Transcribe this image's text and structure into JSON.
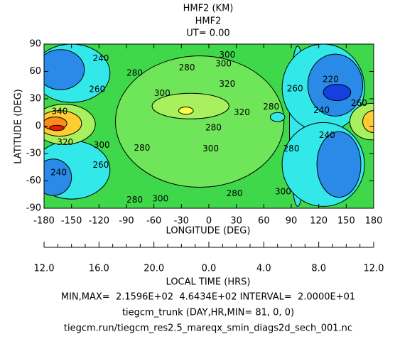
{
  "chart_data": {
    "type": "contour",
    "title": "HMF2 (KM)",
    "subtitle": "HMF2",
    "ut": "UT= 0.00",
    "xlabel": "LONGITUDE (DEG)",
    "ylabel": "LATITUDE (DEG)",
    "xlim": [
      -180,
      180
    ],
    "xticks": [
      -180,
      -150,
      -120,
      -90,
      -60,
      -30,
      0,
      30,
      60,
      90,
      120,
      150,
      180
    ],
    "ylim": [
      -90,
      90
    ],
    "yticks": [
      -90,
      -60,
      -30,
      0,
      30,
      60,
      90
    ],
    "background_color": "#3fd84a",
    "regions": [
      {
        "level": 300,
        "x": -10,
        "y": 5,
        "rx": 92,
        "ry": 72,
        "color": "#6fe65a"
      },
      {
        "level": 320,
        "x": -20,
        "y": 22,
        "rx": 42,
        "ry": 14,
        "color": "#a8f05e"
      },
      {
        "level": 340,
        "x": -25,
        "y": 17,
        "rx": 8,
        "ry": 4,
        "color": "#ffff44"
      },
      {
        "level": 260,
        "x": -150,
        "y": 58,
        "rx": 42,
        "ry": 32,
        "color": "#33e8e8"
      },
      {
        "level": 260,
        "x": -150,
        "y": -48,
        "rx": 42,
        "ry": 32,
        "color": "#33e8e8"
      },
      {
        "level": 260,
        "x": 97,
        "y": 0,
        "rx": 9,
        "ry": 88,
        "color": "#33e8e8"
      },
      {
        "level": 260,
        "x": 125,
        "y": 42,
        "rx": 45,
        "ry": 48,
        "color": "#33e8e8"
      },
      {
        "level": 260,
        "x": 125,
        "y": -42,
        "rx": 45,
        "ry": 46,
        "color": "#33e8e8"
      },
      {
        "level": 240,
        "x": -162,
        "y": 62,
        "rx": 26,
        "ry": 22,
        "color": "#2a8ae8"
      },
      {
        "level": 240,
        "x": -170,
        "y": -56,
        "rx": 20,
        "ry": 20,
        "color": "#2a8ae8"
      },
      {
        "level": 240,
        "x": 138,
        "y": 45,
        "rx": 30,
        "ry": 34,
        "color": "#2a8ae8"
      },
      {
        "level": 240,
        "x": 142,
        "y": -42,
        "rx": 24,
        "ry": 36,
        "color": "#2a8ae8"
      },
      {
        "level": 220,
        "x": 140,
        "y": 37,
        "rx": 15,
        "ry": 9,
        "color": "#1540e0"
      },
      {
        "level": 260,
        "x": 75,
        "y": 10,
        "rx": 8,
        "ry": 5,
        "color": "#33e8e8"
      },
      {
        "level": 320,
        "x": -158,
        "y": 2,
        "rx": 34,
        "ry": 22,
        "color": "#a8f05e"
      },
      {
        "level": 340,
        "x": -163,
        "y": 3,
        "rx": 24,
        "ry": 14,
        "color": "#ffcc33"
      },
      {
        "level": 360,
        "x": -168,
        "y": 3,
        "rx": 13,
        "ry": 7,
        "color": "#ff8c1a"
      },
      {
        "level": 380,
        "x": -166,
        "y": -2,
        "rx": 8,
        "ry": 3,
        "color": "#e82000"
      },
      {
        "level": 320,
        "x": 178,
        "y": 5,
        "rx": 24,
        "ry": 20,
        "color": "#a8f05e"
      },
      {
        "level": 340,
        "x": 180,
        "y": 5,
        "rx": 12,
        "ry": 12,
        "color": "#ffcc33"
      }
    ],
    "contour_labels": [
      {
        "value": 240,
        "x": -118,
        "y": 74
      },
      {
        "value": 260,
        "x": -122,
        "y": 40
      },
      {
        "value": 340,
        "x": -163,
        "y": 16
      },
      {
        "value": 320,
        "x": -157,
        "y": -18
      },
      {
        "value": 300,
        "x": -117,
        "y": -21
      },
      {
        "value": 260,
        "x": -118,
        "y": -43
      },
      {
        "value": 240,
        "x": -164,
        "y": -51
      },
      {
        "value": 280,
        "x": -73,
        "y": -24
      },
      {
        "value": 280,
        "x": -81,
        "y": -81
      },
      {
        "value": 300,
        "x": -53,
        "y": -80
      },
      {
        "value": 300,
        "x": -51,
        "y": 36
      },
      {
        "value": 280,
        "x": -81,
        "y": 58
      },
      {
        "value": 280,
        "x": -24,
        "y": 64
      },
      {
        "value": 300,
        "x": 16,
        "y": 68
      },
      {
        "value": 300,
        "x": 20,
        "y": 78
      },
      {
        "value": 320,
        "x": 20,
        "y": 46
      },
      {
        "value": 320,
        "x": 36,
        "y": 15
      },
      {
        "value": 280,
        "x": 5,
        "y": -2
      },
      {
        "value": 300,
        "x": 2,
        "y": -25
      },
      {
        "value": 280,
        "x": 28,
        "y": -74
      },
      {
        "value": 300,
        "x": 81,
        "y": -72
      },
      {
        "value": 280,
        "x": 68,
        "y": 21
      },
      {
        "value": 260,
        "x": 94,
        "y": 41
      },
      {
        "value": 280,
        "x": 90,
        "y": -25
      },
      {
        "value": 220,
        "x": 133,
        "y": 51
      },
      {
        "value": 240,
        "x": 123,
        "y": 17
      },
      {
        "value": 240,
        "x": 129,
        "y": -10
      },
      {
        "value": 260,
        "x": 164,
        "y": 25
      }
    ],
    "local_time": {
      "label": "LOCAL TIME (HRS)",
      "ticks": [
        "12.0",
        "16.0",
        "20.0",
        "0.0",
        "4.0",
        "8.0",
        "12.0"
      ]
    },
    "footer": [
      "MIN,MAX=  2.1596E+02  4.6434E+02 INTERVAL=  2.0000E+01",
      "tiegcm_trunk (DAY,HR,MIN= 81, 0, 0)",
      "tiegcm.run/tiegcm_res2.5_mareqx_smin_diags2d_sech_001.nc"
    ]
  }
}
